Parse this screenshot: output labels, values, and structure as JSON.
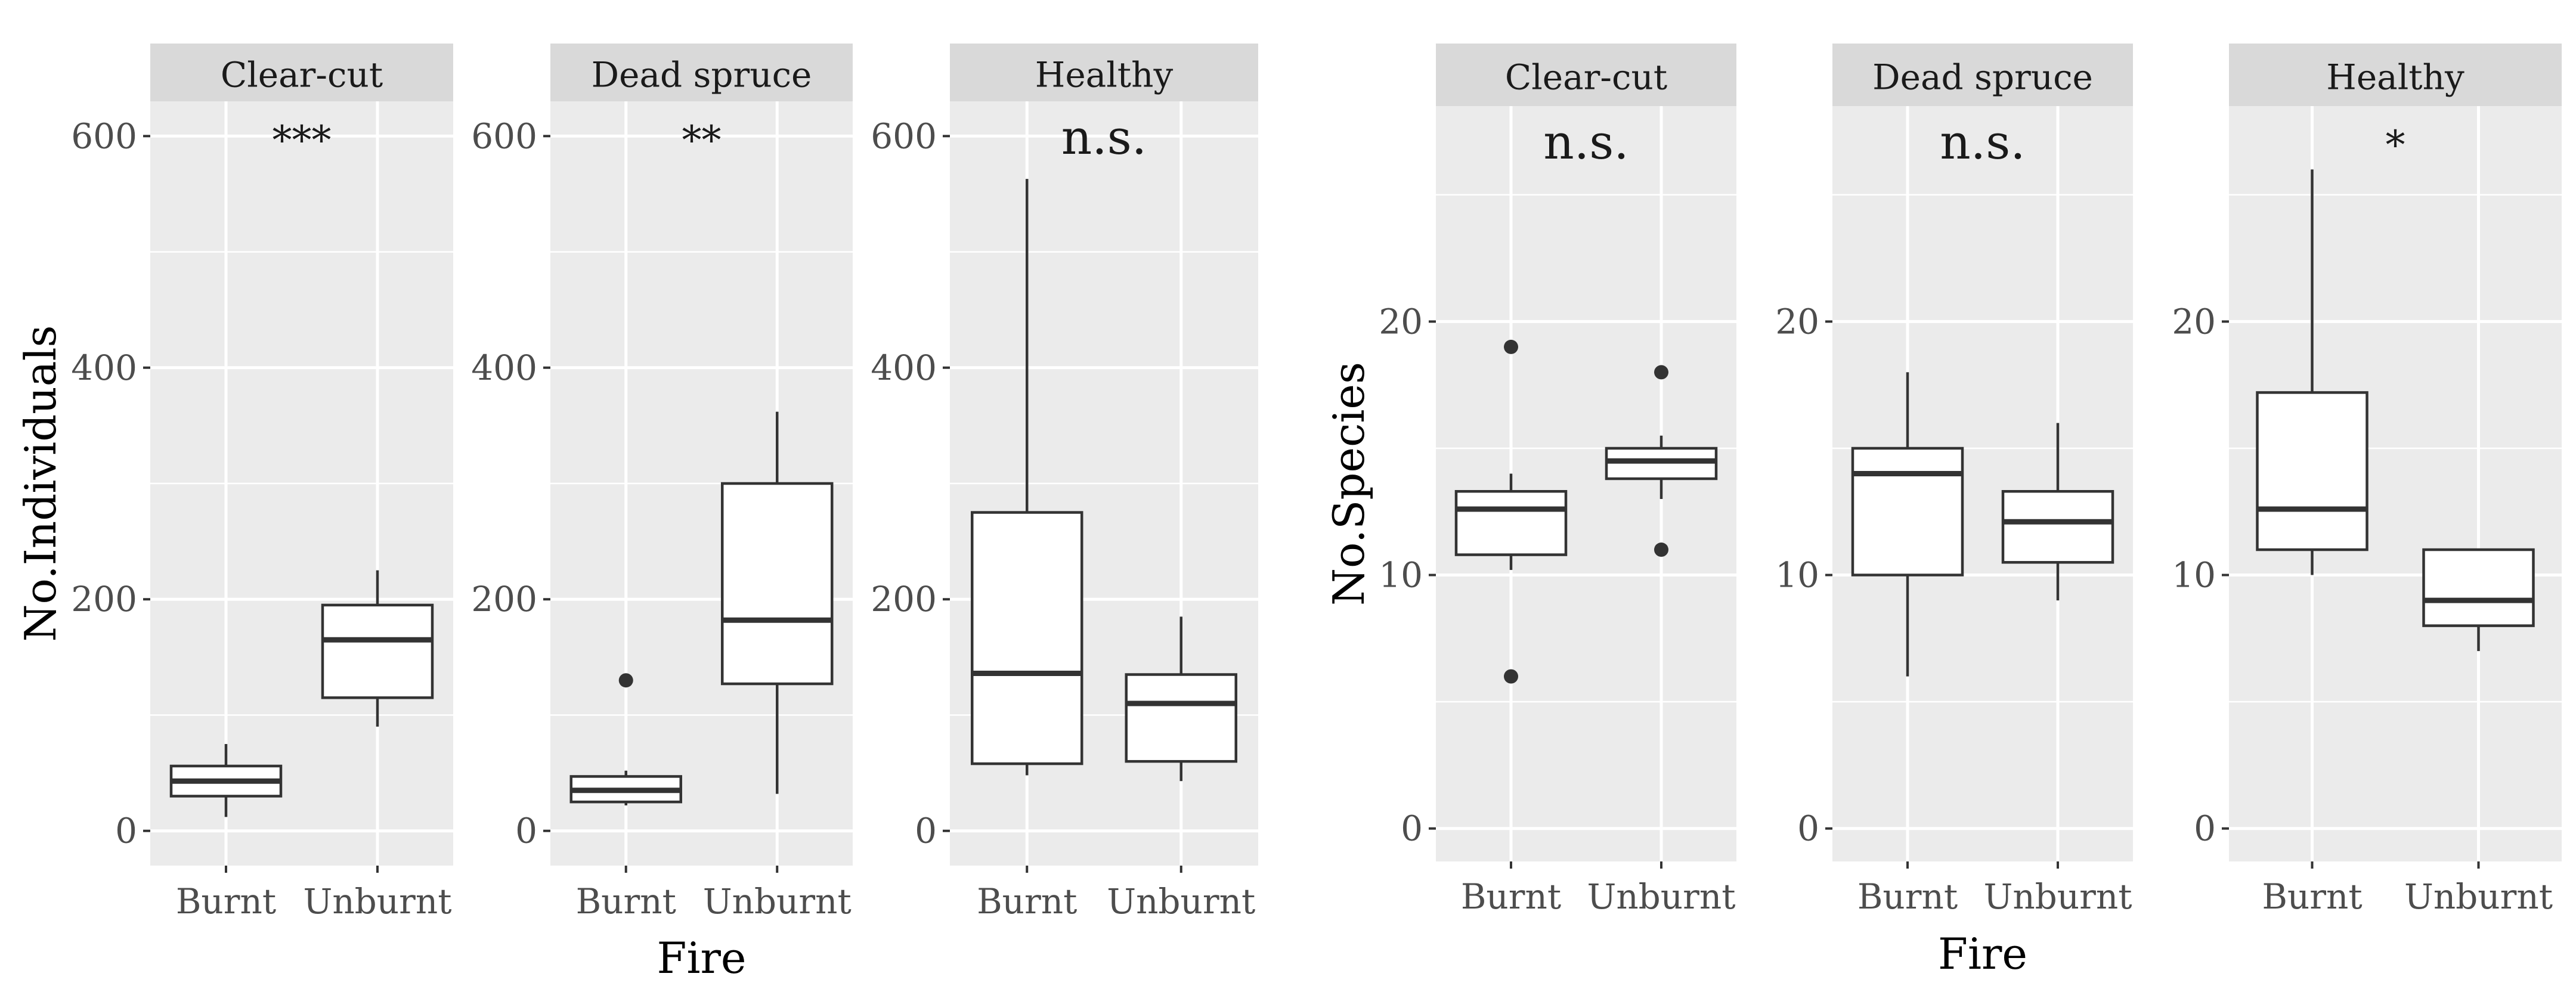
{
  "chart_data": [
    {
      "type": "boxplot",
      "title": "",
      "xlabel": "Fire",
      "ylabel": "No.Individuals",
      "ylim": [
        -30,
        630
      ],
      "yticks": [
        0,
        200,
        400,
        600
      ],
      "ytick_labels": [
        "0",
        "200",
        "400",
        "600"
      ],
      "categories": [
        "Burnt",
        "Unburnt"
      ],
      "facets": [
        {
          "strip": "Clear-cut",
          "significance": "***",
          "boxes": [
            {
              "category": "Burnt",
              "lower_whisker": 12,
              "q1": 30,
              "median": 43,
              "q3": 56,
              "upper_whisker": 75,
              "outliers": []
            },
            {
              "category": "Unburnt",
              "lower_whisker": 90,
              "q1": 115,
              "median": 165,
              "q3": 195,
              "upper_whisker": 225,
              "outliers": []
            }
          ]
        },
        {
          "strip": "Dead spruce",
          "significance": "**",
          "boxes": [
            {
              "category": "Burnt",
              "lower_whisker": 22,
              "q1": 25,
              "median": 35,
              "q3": 47,
              "upper_whisker": 52,
              "outliers": [
                130
              ]
            },
            {
              "category": "Unburnt",
              "lower_whisker": 32,
              "q1": 127,
              "median": 182,
              "q3": 300,
              "upper_whisker": 362,
              "outliers": []
            }
          ]
        },
        {
          "strip": "Healthy",
          "significance": "n.s.",
          "boxes": [
            {
              "category": "Burnt",
              "lower_whisker": 48,
              "q1": 58,
              "median": 136,
              "q3": 275,
              "upper_whisker": 563,
              "outliers": []
            },
            {
              "category": "Unburnt",
              "lower_whisker": 43,
              "q1": 60,
              "median": 110,
              "q3": 135,
              "upper_whisker": 185,
              "outliers": []
            }
          ]
        }
      ]
    },
    {
      "type": "boxplot",
      "title": "",
      "xlabel": "Fire",
      "ylabel": "No.Species",
      "ylim": [
        -1.3,
        28.5
      ],
      "yticks": [
        0,
        10,
        20
      ],
      "ytick_labels": [
        "0",
        "10",
        "20"
      ],
      "categories": [
        "Burnt",
        "Unburnt"
      ],
      "facets": [
        {
          "strip": "Clear-cut",
          "significance": "n.s.",
          "boxes": [
            {
              "category": "Burnt",
              "lower_whisker": 10.2,
              "q1": 10.8,
              "median": 12.6,
              "q3": 13.3,
              "upper_whisker": 14,
              "outliers": [
                6,
                19
              ]
            },
            {
              "category": "Unburnt",
              "lower_whisker": 13,
              "q1": 13.8,
              "median": 14.5,
              "q3": 15,
              "upper_whisker": 15.5,
              "outliers": [
                11,
                18
              ]
            }
          ]
        },
        {
          "strip": "Dead spruce",
          "significance": "n.s.",
          "boxes": [
            {
              "category": "Burnt",
              "lower_whisker": 6,
              "q1": 10,
              "median": 14,
              "q3": 15,
              "upper_whisker": 18,
              "outliers": []
            },
            {
              "category": "Unburnt",
              "lower_whisker": 9,
              "q1": 10.5,
              "median": 12.1,
              "q3": 13.3,
              "upper_whisker": 16,
              "outliers": []
            }
          ]
        },
        {
          "strip": "Healthy",
          "significance": "*",
          "boxes": [
            {
              "category": "Burnt",
              "lower_whisker": 10,
              "q1": 11,
              "median": 12.6,
              "q3": 17.2,
              "upper_whisker": 26,
              "outliers": []
            },
            {
              "category": "Unburnt",
              "lower_whisker": 7,
              "q1": 8,
              "median": 9,
              "q3": 11,
              "upper_whisker": 11,
              "outliers": []
            }
          ]
        }
      ]
    }
  ]
}
